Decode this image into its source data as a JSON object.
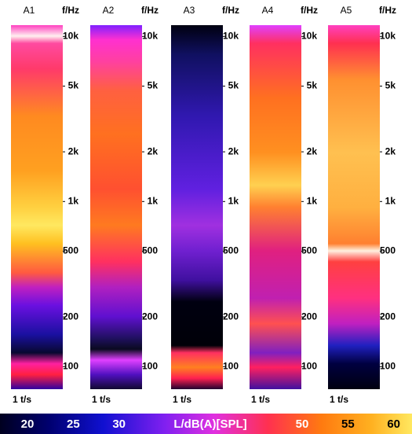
{
  "figure": {
    "panels": [
      {
        "title": "A1",
        "axis_label": "f/Hz",
        "time_label": "1 t/s"
      },
      {
        "title": "A2",
        "axis_label": "f/Hz",
        "time_label": "1 t/s"
      },
      {
        "title": "A3",
        "axis_label": "f/Hz",
        "time_label": "1 t/s"
      },
      {
        "title": "A4",
        "axis_label": "f/Hz",
        "time_label": "1 t/s"
      },
      {
        "title": "A5",
        "axis_label": "f/Hz",
        "time_label": "1 t/s"
      }
    ],
    "ylim": [
      73,
      11700
    ],
    "log_y": true,
    "yticks": [
      {
        "value": 10000,
        "label": "10k"
      },
      {
        "value": 5000,
        "label": "5k"
      },
      {
        "value": 2000,
        "label": "2k"
      },
      {
        "value": 1000,
        "label": "1k"
      },
      500,
      200,
      100
    ],
    "colorbar": {
      "label": "L/dB(A)[SPL]",
      "clim": [
        17,
        62
      ],
      "ticks": [
        20,
        25,
        30,
        50,
        55,
        60
      ]
    }
  }
}
